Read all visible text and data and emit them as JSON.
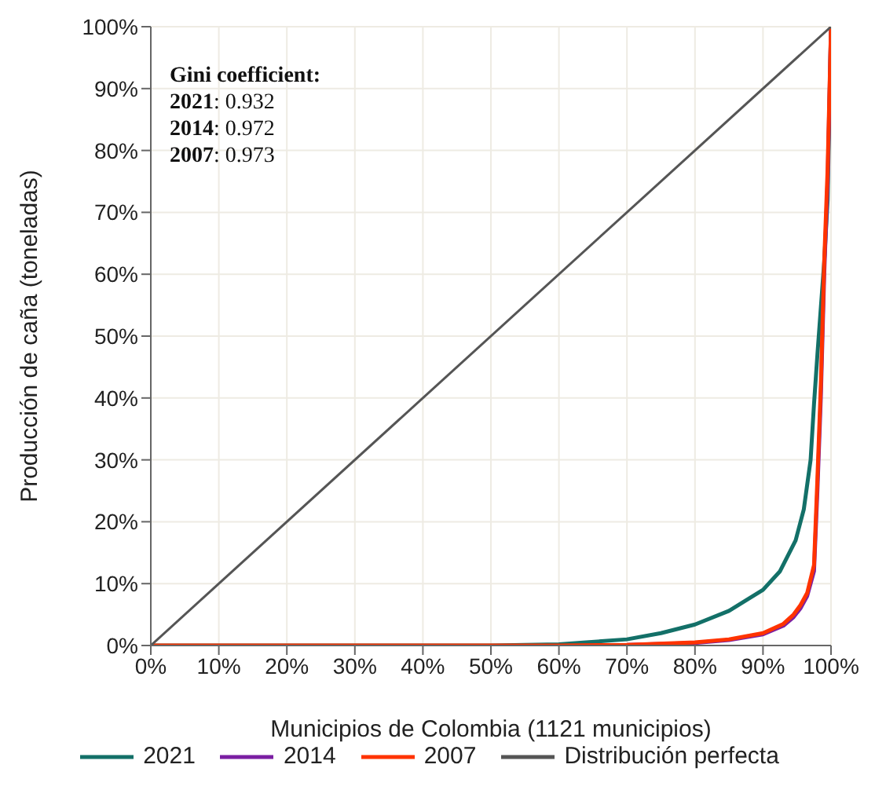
{
  "chart_data": {
    "type": "line",
    "xlabel": "Municipios de Colombia (1121 municipios)",
    "ylabel": "Producción de caña (toneladas)",
    "xlim": [
      0,
      100
    ],
    "ylim": [
      0,
      100
    ],
    "xticks": [
      {
        "value": 0,
        "label": "0%"
      },
      {
        "value": 10,
        "label": "10%"
      },
      {
        "value": 20,
        "label": "20%"
      },
      {
        "value": 30,
        "label": "30%"
      },
      {
        "value": 40,
        "label": "40%"
      },
      {
        "value": 50,
        "label": "50%"
      },
      {
        "value": 60,
        "label": "60%"
      },
      {
        "value": 70,
        "label": "70%"
      },
      {
        "value": 80,
        "label": "80%"
      },
      {
        "value": 90,
        "label": "90%"
      },
      {
        "value": 100,
        "label": "100%"
      }
    ],
    "yticks": [
      {
        "value": 0,
        "label": "0%"
      },
      {
        "value": 10,
        "label": "10%"
      },
      {
        "value": 20,
        "label": "20%"
      },
      {
        "value": 30,
        "label": "30%"
      },
      {
        "value": 40,
        "label": "40%"
      },
      {
        "value": 50,
        "label": "50%"
      },
      {
        "value": 60,
        "label": "60%"
      },
      {
        "value": 70,
        "label": "70%"
      },
      {
        "value": 80,
        "label": "80%"
      },
      {
        "value": 90,
        "label": "90%"
      },
      {
        "value": 100,
        "label": "100%"
      }
    ],
    "grid": true,
    "legend": "bottom",
    "marker": "none",
    "line_style": "solid",
    "annotations": [
      "Gini coefficient:",
      "2021: 0.932",
      "2014: 0.972",
      "2007: 0.973"
    ],
    "series": [
      {
        "name": "2021",
        "color": "#137068",
        "x": [
          0,
          50,
          60,
          64,
          70,
          75,
          80,
          85,
          90,
          92.5,
          94.8,
          96,
          97,
          97.5,
          98,
          99,
          99.5,
          100
        ],
        "values": [
          0,
          0,
          0.2,
          0.5,
          1,
          2,
          3.4,
          5.6,
          9,
          12,
          17,
          22,
          30,
          39,
          47,
          62,
          72,
          100
        ]
      },
      {
        "name": "2014",
        "color": "#7b1fa2",
        "x": [
          70,
          80,
          85,
          90,
          93,
          94.5,
          95.5,
          96.5,
          97.5,
          98,
          98.5,
          99,
          99.5,
          100
        ],
        "values": [
          0.1,
          0.4,
          0.9,
          1.8,
          3.2,
          4.6,
          6,
          8,
          12,
          25,
          40,
          60,
          75,
          100
        ]
      },
      {
        "name": "2007",
        "color": "#ff3300",
        "x": [
          0,
          60,
          70,
          80,
          85,
          90,
          93,
          94.5,
          95.5,
          96.5,
          97.5,
          98,
          98.5,
          99,
          99.5,
          100
        ],
        "values": [
          0,
          0,
          0.1,
          0.5,
          1,
          2,
          3.5,
          5,
          6.5,
          8.5,
          13,
          27,
          42,
          62,
          77,
          100
        ]
      },
      {
        "name": "Distribución perfecta",
        "color": "#555555",
        "x": [
          0,
          100
        ],
        "values": [
          0,
          100
        ]
      }
    ]
  }
}
